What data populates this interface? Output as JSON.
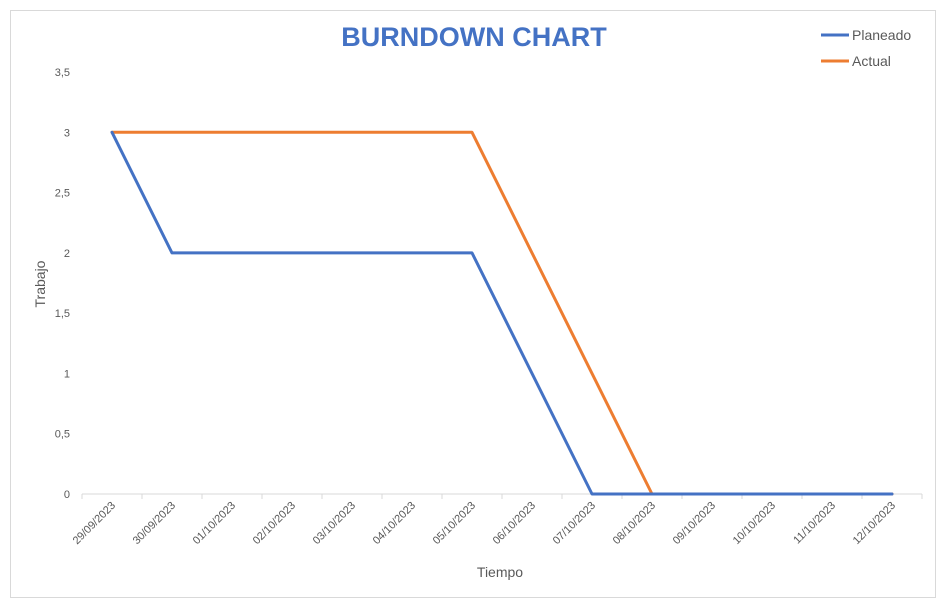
{
  "chart_data": {
    "type": "line",
    "title": "BURNDOWN CHART",
    "xlabel": "Tiempo",
    "ylabel": "Trabajo",
    "ylim": [
      0,
      3.5
    ],
    "yticks": [
      "0",
      "0,5",
      "1",
      "1,5",
      "2",
      "2,5",
      "3",
      "3,5"
    ],
    "ytick_values": [
      0,
      0.5,
      1,
      1.5,
      2,
      2.5,
      3,
      3.5
    ],
    "categories": [
      "29/09/2023",
      "30/09/2023",
      "01/10/2023",
      "02/10/2023",
      "03/10/2023",
      "04/10/2023",
      "05/10/2023",
      "06/10/2023",
      "07/10/2023",
      "08/10/2023",
      "09/10/2023",
      "10/10/2023",
      "11/10/2023",
      "12/10/2023"
    ],
    "series": [
      {
        "name": "Planeado",
        "color": "#4472c4",
        "values": [
          3,
          2,
          2,
          2,
          2,
          2,
          2,
          1,
          0,
          0,
          0,
          0,
          0,
          0
        ]
      },
      {
        "name": "Actual",
        "color": "#ed7d31",
        "values": [
          3,
          3,
          3,
          3,
          3,
          3,
          3,
          2,
          1,
          0,
          0,
          0,
          0,
          0
        ]
      }
    ],
    "grid": false,
    "legend_position": "top-right"
  }
}
